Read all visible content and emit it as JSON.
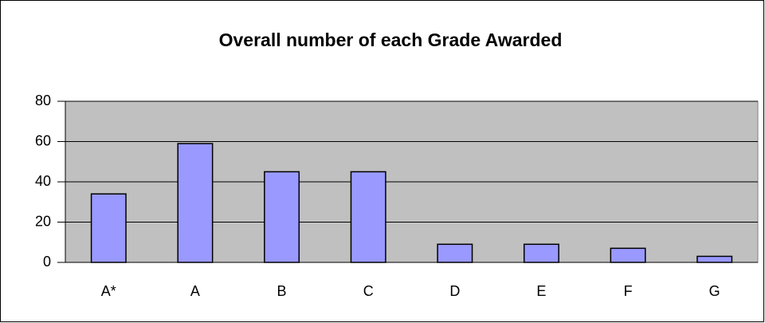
{
  "chart_data": {
    "type": "bar",
    "title": "Overall number of each Grade Awarded",
    "categories": [
      "A*",
      "A",
      "B",
      "C",
      "D",
      "E",
      "F",
      "G"
    ],
    "values": [
      34,
      59,
      45,
      45,
      9,
      9,
      7,
      3
    ],
    "color": "#9999ff",
    "plot_background": "#c0c0c0",
    "ylim": [
      0,
      80
    ],
    "yticks": [
      0,
      20,
      40,
      60,
      80
    ],
    "grid": true
  }
}
